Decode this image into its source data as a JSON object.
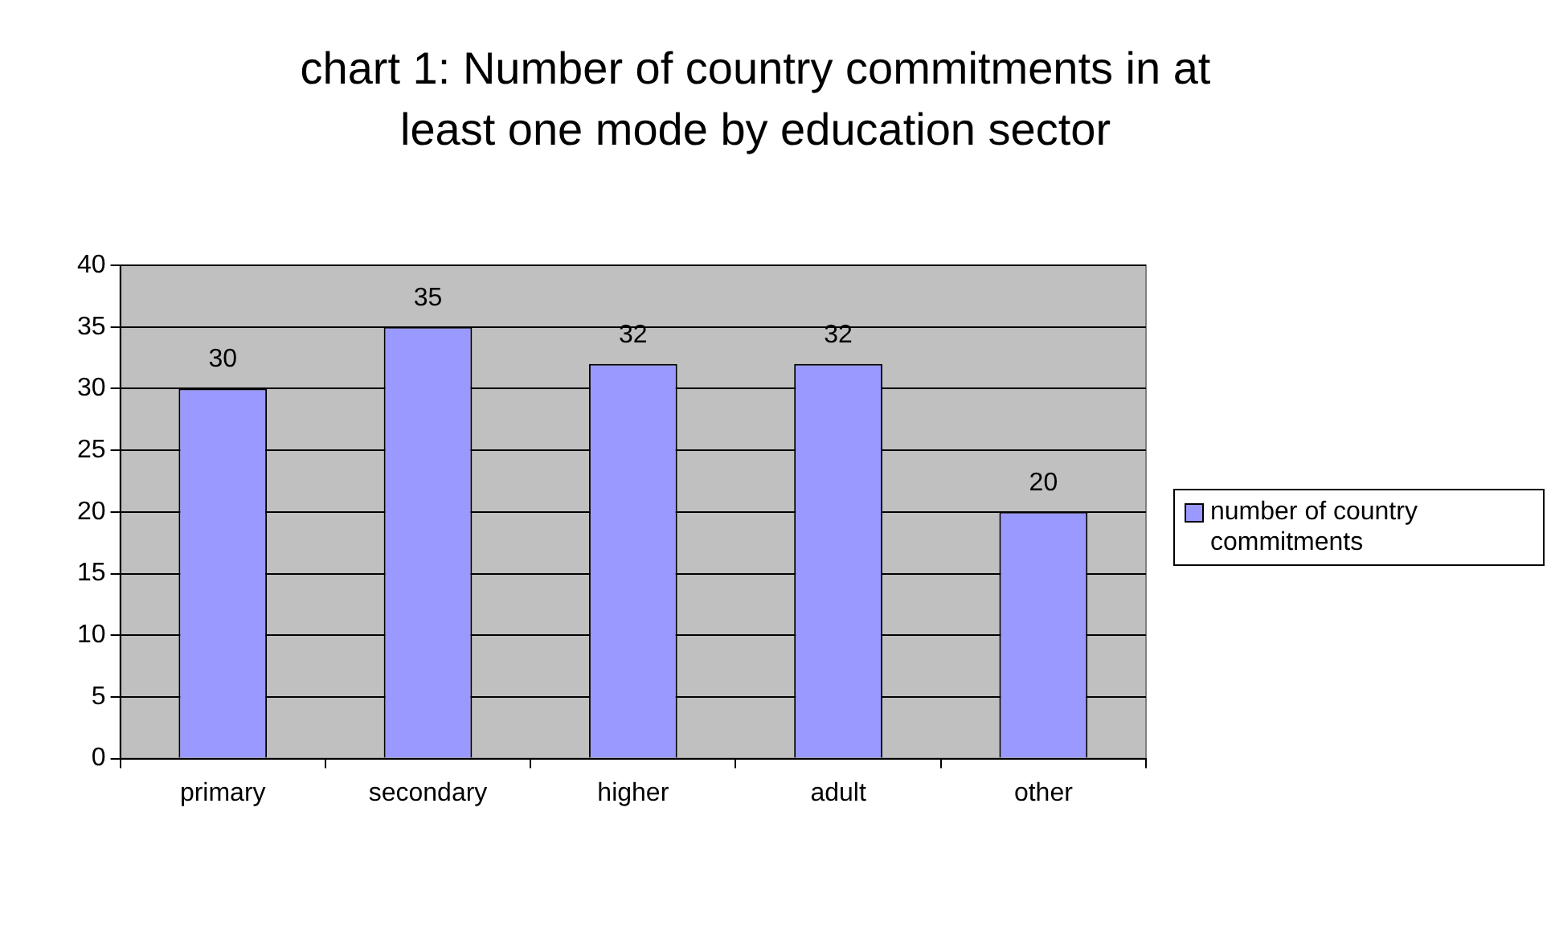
{
  "chart_data": {
    "type": "bar",
    "title": "chart 1: Number of country commitments in at least one mode by education sector",
    "categories": [
      "primary",
      "secondary",
      "higher",
      "adult",
      "other"
    ],
    "series": [
      {
        "name": "number of country commitments",
        "color": "#9999ff",
        "values": [
          30,
          35,
          32,
          32,
          20
        ]
      }
    ],
    "ylim": [
      0,
      40
    ],
    "yticks": [
      0,
      5,
      10,
      15,
      20,
      25,
      30,
      35,
      40
    ],
    "grid": "y",
    "legend": "right",
    "data_labels": true
  }
}
